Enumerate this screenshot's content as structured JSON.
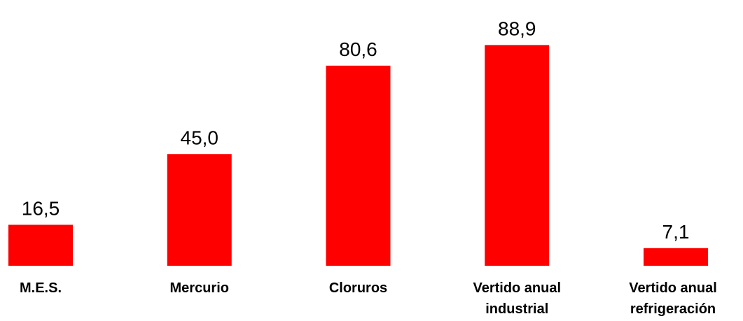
{
  "chart_data": {
    "type": "bar",
    "categories": [
      "M.E.S.",
      "Mercurio",
      "Cloruros",
      "Vertido anual industrial",
      "Vertido anual refrigeración"
    ],
    "values": [
      16.5,
      45.0,
      80.6,
      88.9,
      7.1
    ],
    "value_labels": [
      "16,5",
      "45,0",
      "80,6",
      "88,9",
      "7,1"
    ],
    "color": "#ff0000"
  }
}
